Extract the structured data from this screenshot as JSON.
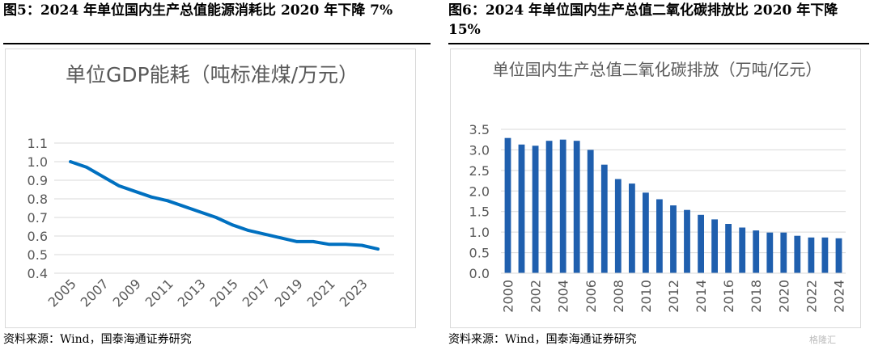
{
  "figures": [
    {
      "title": "图5：2024 年单位国内生产总值能源消耗比 2020 年下降 7%",
      "source": "资料来源：Wind，国泰海通证券研究"
    },
    {
      "title": "图6：2024 年单位国内生产总值二氧化碳排放比 2020 年下降 15%",
      "source": "资料来源：Wind，国泰海通证券研究"
    }
  ],
  "watermark": "格隆汇",
  "chart_data": [
    {
      "type": "line",
      "title": "单位GDP能耗（吨标准煤/万元）",
      "x": [
        2005,
        2006,
        2007,
        2008,
        2009,
        2010,
        2011,
        2012,
        2013,
        2014,
        2015,
        2016,
        2017,
        2018,
        2019,
        2020,
        2021,
        2022,
        2023,
        2024
      ],
      "values": [
        1.0,
        0.97,
        0.92,
        0.87,
        0.84,
        0.81,
        0.79,
        0.76,
        0.73,
        0.7,
        0.66,
        0.63,
        0.61,
        0.59,
        0.57,
        0.57,
        0.555,
        0.555,
        0.55,
        0.53
      ],
      "x_tick_labels": [
        "2005",
        "2007",
        "2009",
        "2011",
        "2013",
        "2015",
        "2017",
        "2019",
        "2021",
        "2023"
      ],
      "y_tick_labels": [
        "0.4",
        "0.5",
        "0.6",
        "0.7",
        "0.8",
        "0.9",
        "1.0",
        "1.1"
      ],
      "ylim": [
        0.4,
        1.1
      ],
      "grid": true,
      "color": "#0070C0"
    },
    {
      "type": "bar",
      "title": "单位国内生产总值二氧化碳排放（万吨/亿元）",
      "categories": [
        "2000",
        "2001",
        "2002",
        "2003",
        "2004",
        "2005",
        "2006",
        "2007",
        "2008",
        "2009",
        "2010",
        "2011",
        "2012",
        "2013",
        "2014",
        "2015",
        "2016",
        "2017",
        "2018",
        "2019",
        "2020",
        "2021",
        "2022",
        "2023",
        "2024"
      ],
      "values": [
        3.29,
        3.13,
        3.1,
        3.22,
        3.25,
        3.22,
        3.0,
        2.64,
        2.29,
        2.18,
        1.96,
        1.8,
        1.65,
        1.54,
        1.42,
        1.31,
        1.2,
        1.11,
        1.04,
        0.99,
        0.99,
        0.91,
        0.87,
        0.87,
        0.85
      ],
      "x_tick_labels": [
        "2000",
        "2002",
        "2004",
        "2006",
        "2008",
        "2010",
        "2012",
        "2014",
        "2016",
        "2018",
        "2020",
        "2022",
        "2024"
      ],
      "y_tick_labels": [
        "0.0",
        "0.5",
        "1.0",
        "1.5",
        "2.0",
        "2.5",
        "3.0",
        "3.5"
      ],
      "ylim": [
        0,
        3.5
      ],
      "grid": true,
      "color": "#1F5FAE"
    }
  ]
}
